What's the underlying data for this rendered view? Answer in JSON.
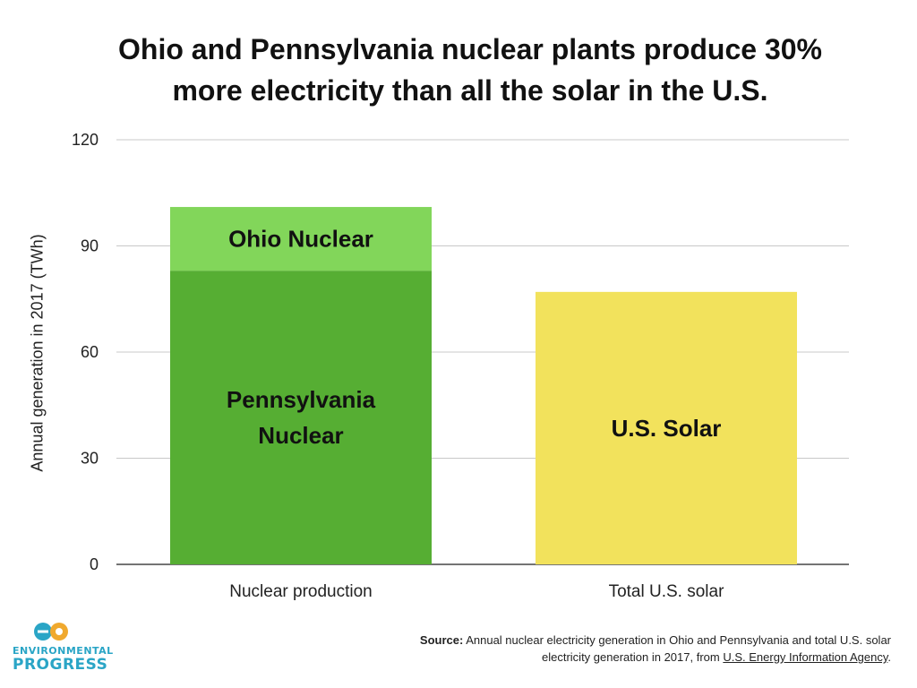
{
  "chart_data": {
    "type": "bar",
    "stacked": true,
    "title": "Ohio and Pennsylvania nuclear plants produce 30% more electricity than all the solar in the U.S.",
    "title_lines": [
      "Ohio and Pennsylvania nuclear plants produce 30%",
      "more electricity than all the solar in the U.S."
    ],
    "ylabel": "Annual generation in 2017 (TWh)",
    "xlabel": "",
    "ylim": [
      0,
      120
    ],
    "yticks": [
      0,
      30,
      60,
      90,
      120
    ],
    "grid": true,
    "categories": [
      "Nuclear production",
      "Total U.S. solar"
    ],
    "bars": [
      {
        "category": "Nuclear production",
        "segments": [
          {
            "label": "Pennsylvania Nuclear",
            "label_lines": [
              "Pennsylvania",
              "Nuclear"
            ],
            "value": 83,
            "color": "#56ae33"
          },
          {
            "label": "Ohio Nuclear",
            "label_lines": [
              "Ohio Nuclear"
            ],
            "value": 18,
            "color": "#82d65a"
          }
        ]
      },
      {
        "category": "Total U.S. solar",
        "segments": [
          {
            "label": "U.S. Solar",
            "label_lines": [
              "U.S. Solar"
            ],
            "value": 77,
            "color": "#f2e25c"
          }
        ]
      }
    ]
  },
  "source": {
    "label": "Source:",
    "text": "Annual nuclear electricity generation in Ohio and Pennsylvania and total U.S. solar electricity generation in 2017, from",
    "link_text": "U.S. Energy Information Agency",
    "end": "."
  },
  "logo": {
    "line1": "ENVIRONMENTAL",
    "line2": "PROGRESS",
    "colors": {
      "teal": "#2aa5c6",
      "orange": "#f0a92e"
    }
  }
}
